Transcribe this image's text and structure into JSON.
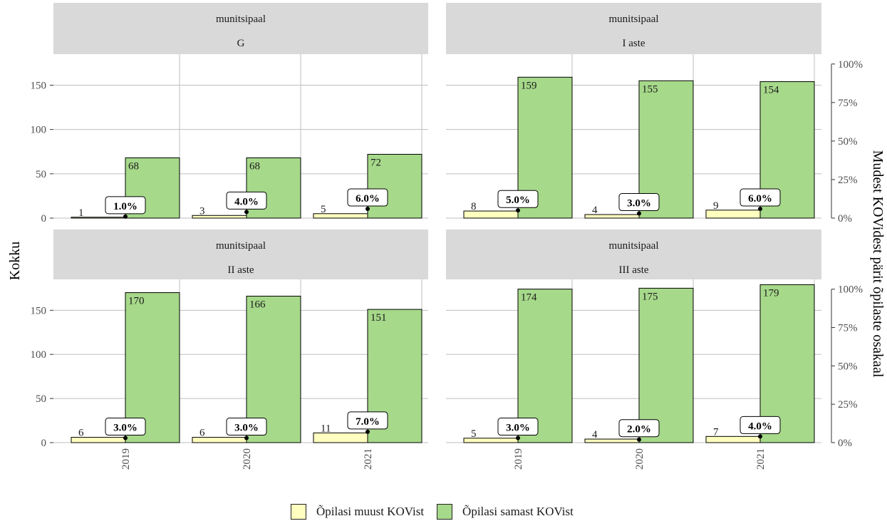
{
  "chart_data": {
    "type": "bar",
    "ylabel": "Kokku",
    "y2label": "Mudest KOVidest pärit õpilaste osakaal",
    "ylim": [
      0,
      185
    ],
    "y2lim": [
      0,
      1
    ],
    "yticks": [
      "0",
      "50",
      "100",
      "150"
    ],
    "y2ticks": [
      "0%",
      "25%",
      "50%",
      "75%",
      "100%"
    ],
    "categories": [
      "2019",
      "2020",
      "2021"
    ],
    "grid": true,
    "legend_position": "bottom",
    "series_names": [
      "Õpilasi muust KOVist",
      "Õpilasi samast KOVist"
    ],
    "colors": {
      "muust": "#ffffbf",
      "samast": "#a6d98a",
      "strip": "#d9d9d9",
      "grid": "#bfbfbf"
    },
    "panels": [
      {
        "strip_top": "munitsipaal",
        "strip_bottom": "G",
        "muust": [
          1,
          3,
          5
        ],
        "samast": [
          68,
          68,
          72
        ],
        "share_labels": [
          "1.0%",
          "4.0%",
          "6.0%"
        ],
        "share": [
          0.01,
          0.04,
          0.06
        ]
      },
      {
        "strip_top": "munitsipaal",
        "strip_bottom": "I aste",
        "muust": [
          8,
          4,
          9
        ],
        "samast": [
          159,
          155,
          154
        ],
        "share_labels": [
          "5.0%",
          "3.0%",
          "6.0%"
        ],
        "share": [
          0.05,
          0.03,
          0.06
        ]
      },
      {
        "strip_top": "munitsipaal",
        "strip_bottom": "II aste",
        "muust": [
          6,
          6,
          11
        ],
        "samast": [
          170,
          166,
          151
        ],
        "share_labels": [
          "3.0%",
          "3.0%",
          "7.0%"
        ],
        "share": [
          0.03,
          0.03,
          0.07
        ]
      },
      {
        "strip_top": "munitsipaal",
        "strip_bottom": "III aste",
        "muust": [
          5,
          4,
          7
        ],
        "samast": [
          174,
          175,
          179
        ],
        "share_labels": [
          "3.0%",
          "2.0%",
          "4.0%"
        ],
        "share": [
          0.03,
          0.02,
          0.04
        ]
      }
    ]
  }
}
